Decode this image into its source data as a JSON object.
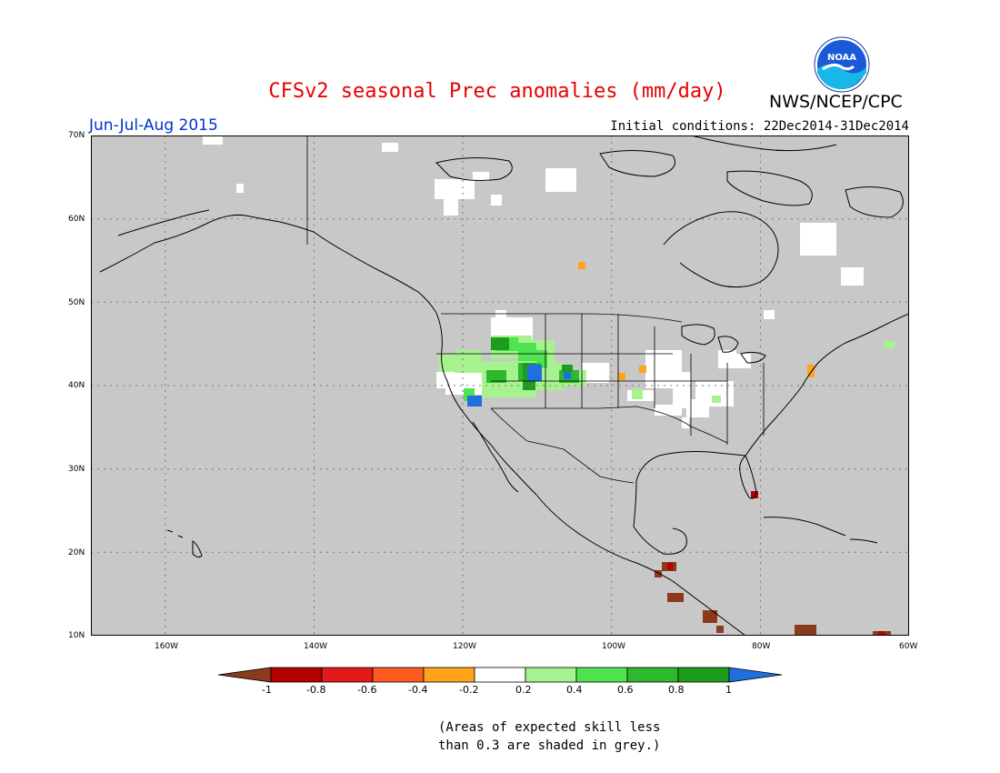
{
  "header": {
    "title": "CFSv2 seasonal Prec anomalies (mm/day)",
    "organization": "NWS/NCEP/CPC",
    "logo_text": "NOAA",
    "period": "Jun-Jul-Aug 2015",
    "initial_conditions": "Initial conditions: 22Dec2014-31Dec2014"
  },
  "map": {
    "projection": "lat-lon",
    "lon_range": [
      -170,
      -60
    ],
    "lat_range": [
      10,
      70
    ],
    "land_color": "#c8c8c8",
    "lat_labels": [
      "70N",
      "60N",
      "50N",
      "40N",
      "30N",
      "20N",
      "10N"
    ],
    "lon_labels": [
      "160W",
      "140W",
      "120W",
      "100W",
      "80W",
      "60W"
    ]
  },
  "legend": {
    "labels": [
      "-1",
      "-0.8",
      "-0.6",
      "-0.4",
      "-0.2",
      "0.2",
      "0.4",
      "0.6",
      "0.8",
      "1"
    ],
    "colors": [
      "#8c3a1e",
      "#b30000",
      "#e21a1a",
      "#ff5a1f",
      "#ffa31a",
      "#ffffff",
      "#a6f28f",
      "#4fe34f",
      "#2db82d",
      "#1e9c1e",
      "#1f6fe0"
    ]
  },
  "note": {
    "line1": "(Areas of expected skill less",
    "line2": "than 0.3 are shaded in grey.)"
  }
}
